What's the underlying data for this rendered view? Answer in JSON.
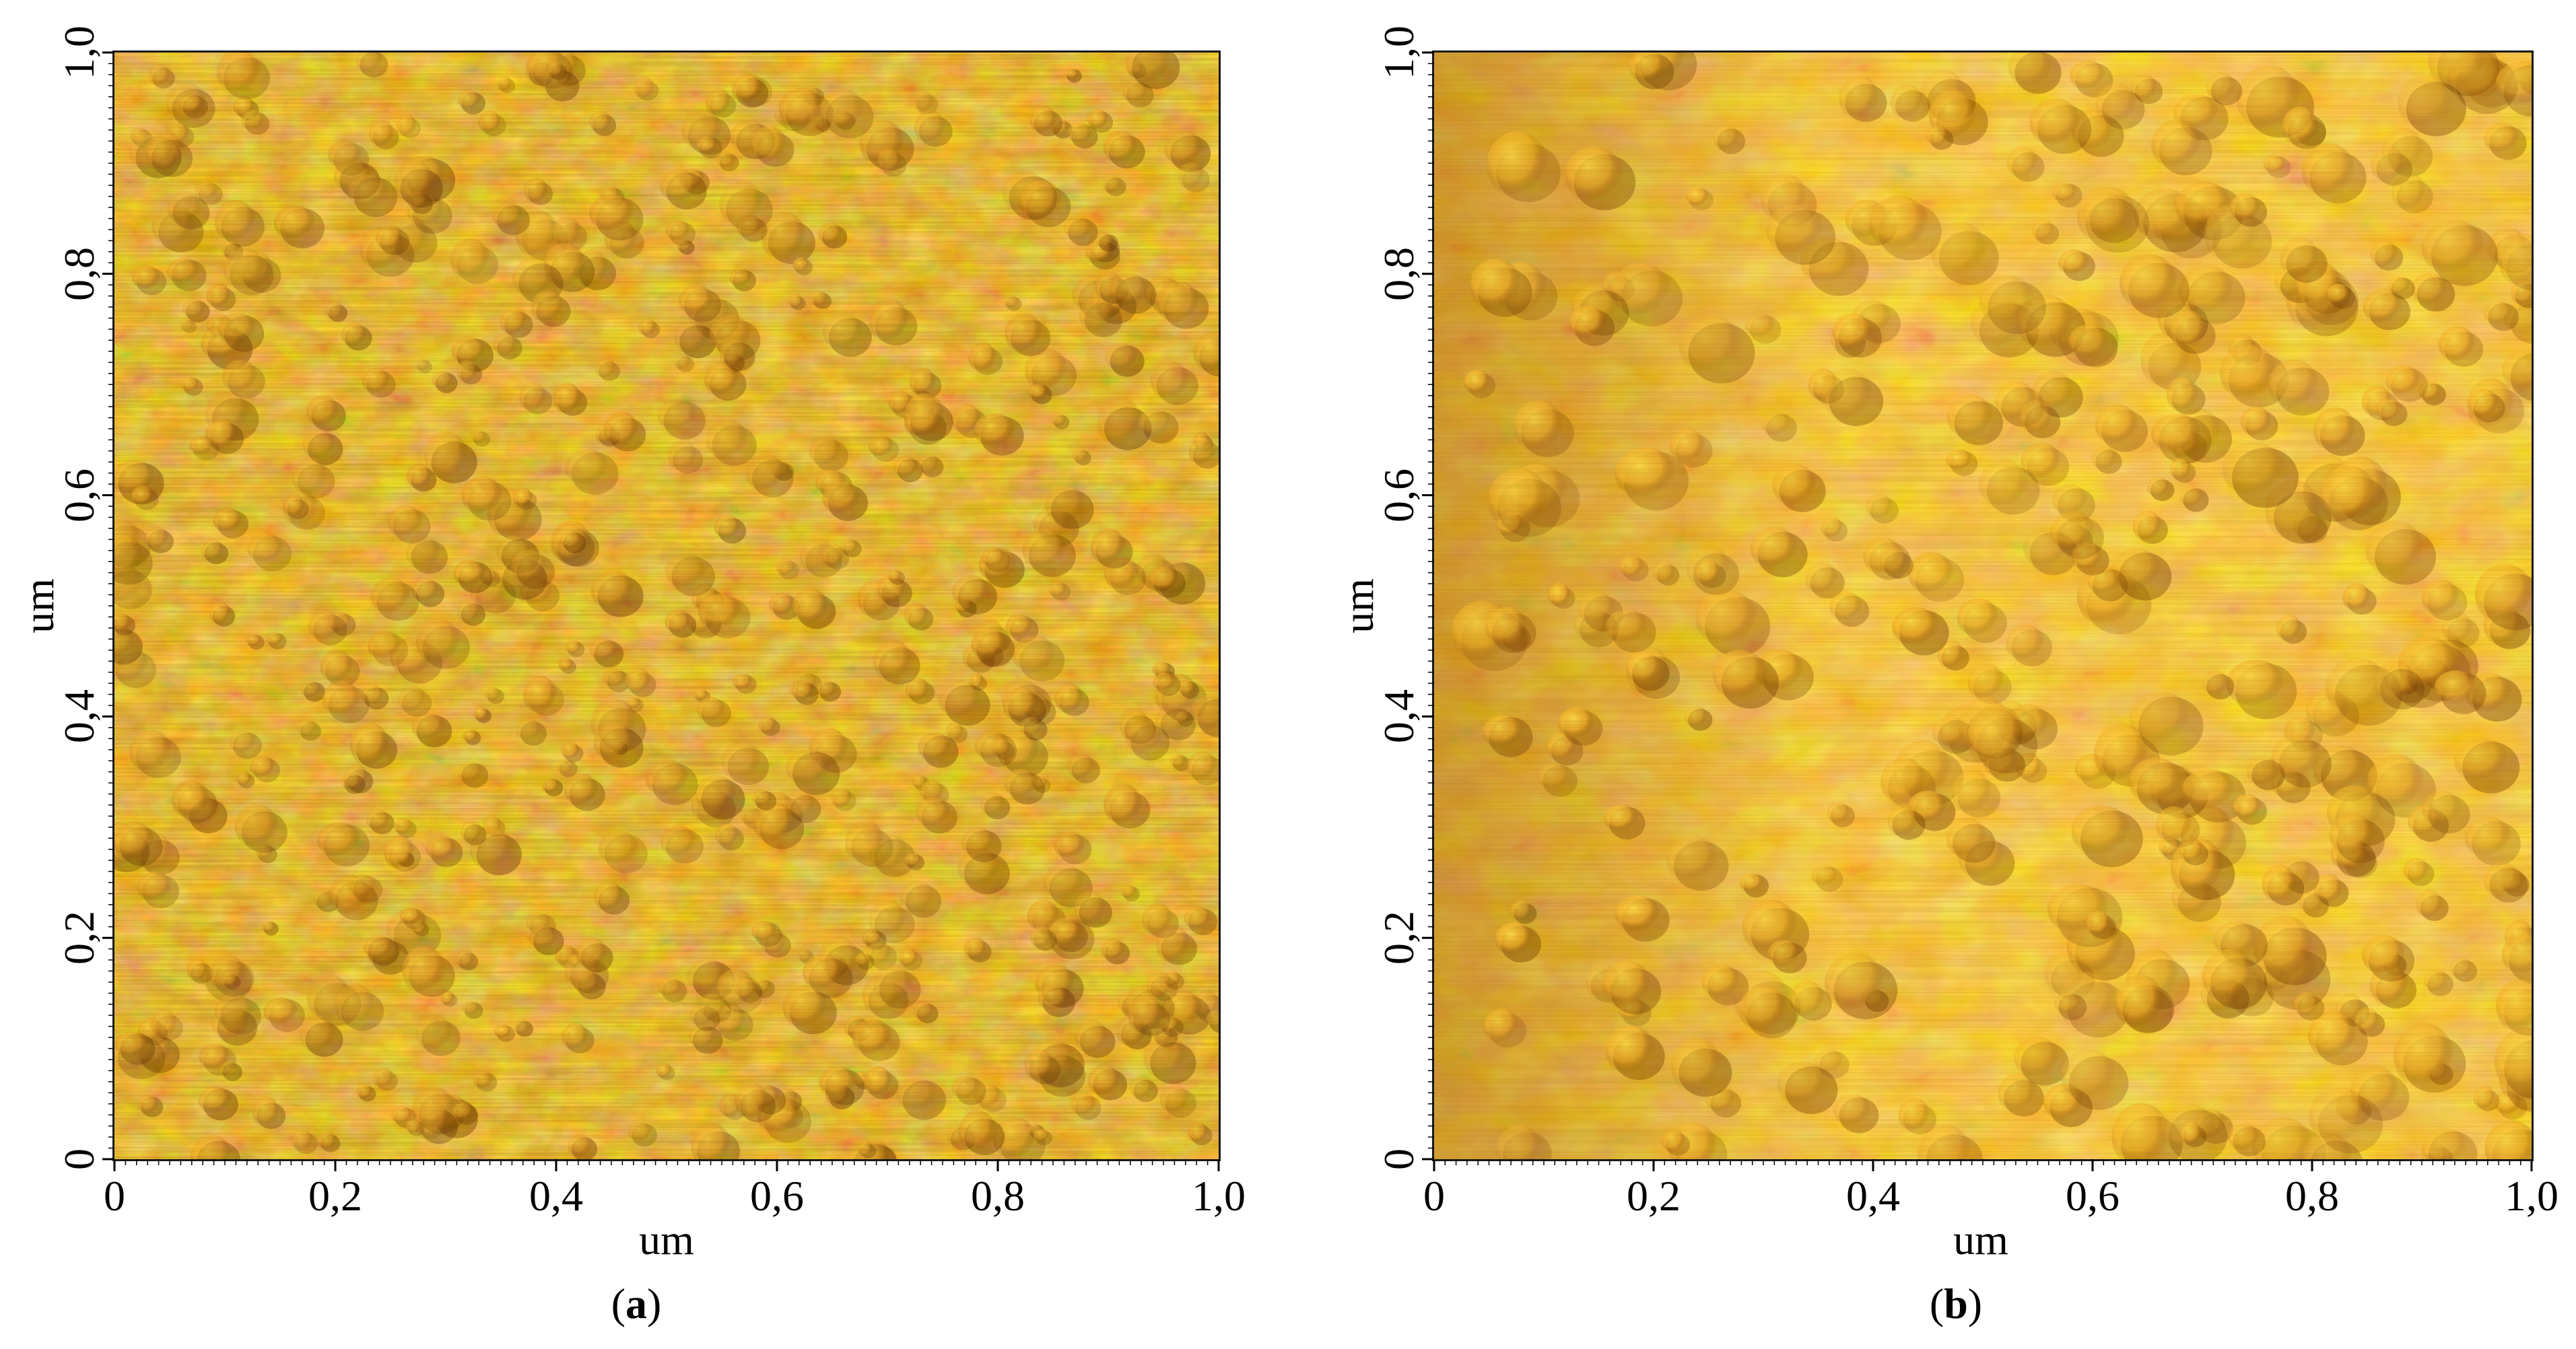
{
  "panels": [
    {
      "id": "a",
      "caption_open": "(",
      "caption_letter": "a",
      "caption_close": ")",
      "xlabel": "um",
      "ylabel": "um",
      "xticks": [
        "0",
        "0,2",
        "0,4",
        "0,6",
        "0,8",
        "1,0"
      ],
      "yticks": [
        "0",
        "0,2",
        "0,4",
        "0,6",
        "0,8",
        "1,0"
      ],
      "colors": {
        "dark": "#5a2a00",
        "mid": "#c8780c",
        "base": "#d98d16",
        "light": "#ffcb2e"
      }
    },
    {
      "id": "b",
      "caption_open": "(",
      "caption_letter": "b",
      "caption_close": ")",
      "xlabel": "um",
      "ylabel": "um",
      "xticks": [
        "0",
        "0,2",
        "0,4",
        "0,6",
        "0,8",
        "1,0"
      ],
      "yticks": [
        "0",
        "0,2",
        "0,4",
        "0,6",
        "0,8",
        "1,0"
      ],
      "colors": {
        "dark": "#6a3400",
        "mid": "#e09515",
        "base": "#eda31e",
        "light": "#ffd23a"
      }
    }
  ]
}
